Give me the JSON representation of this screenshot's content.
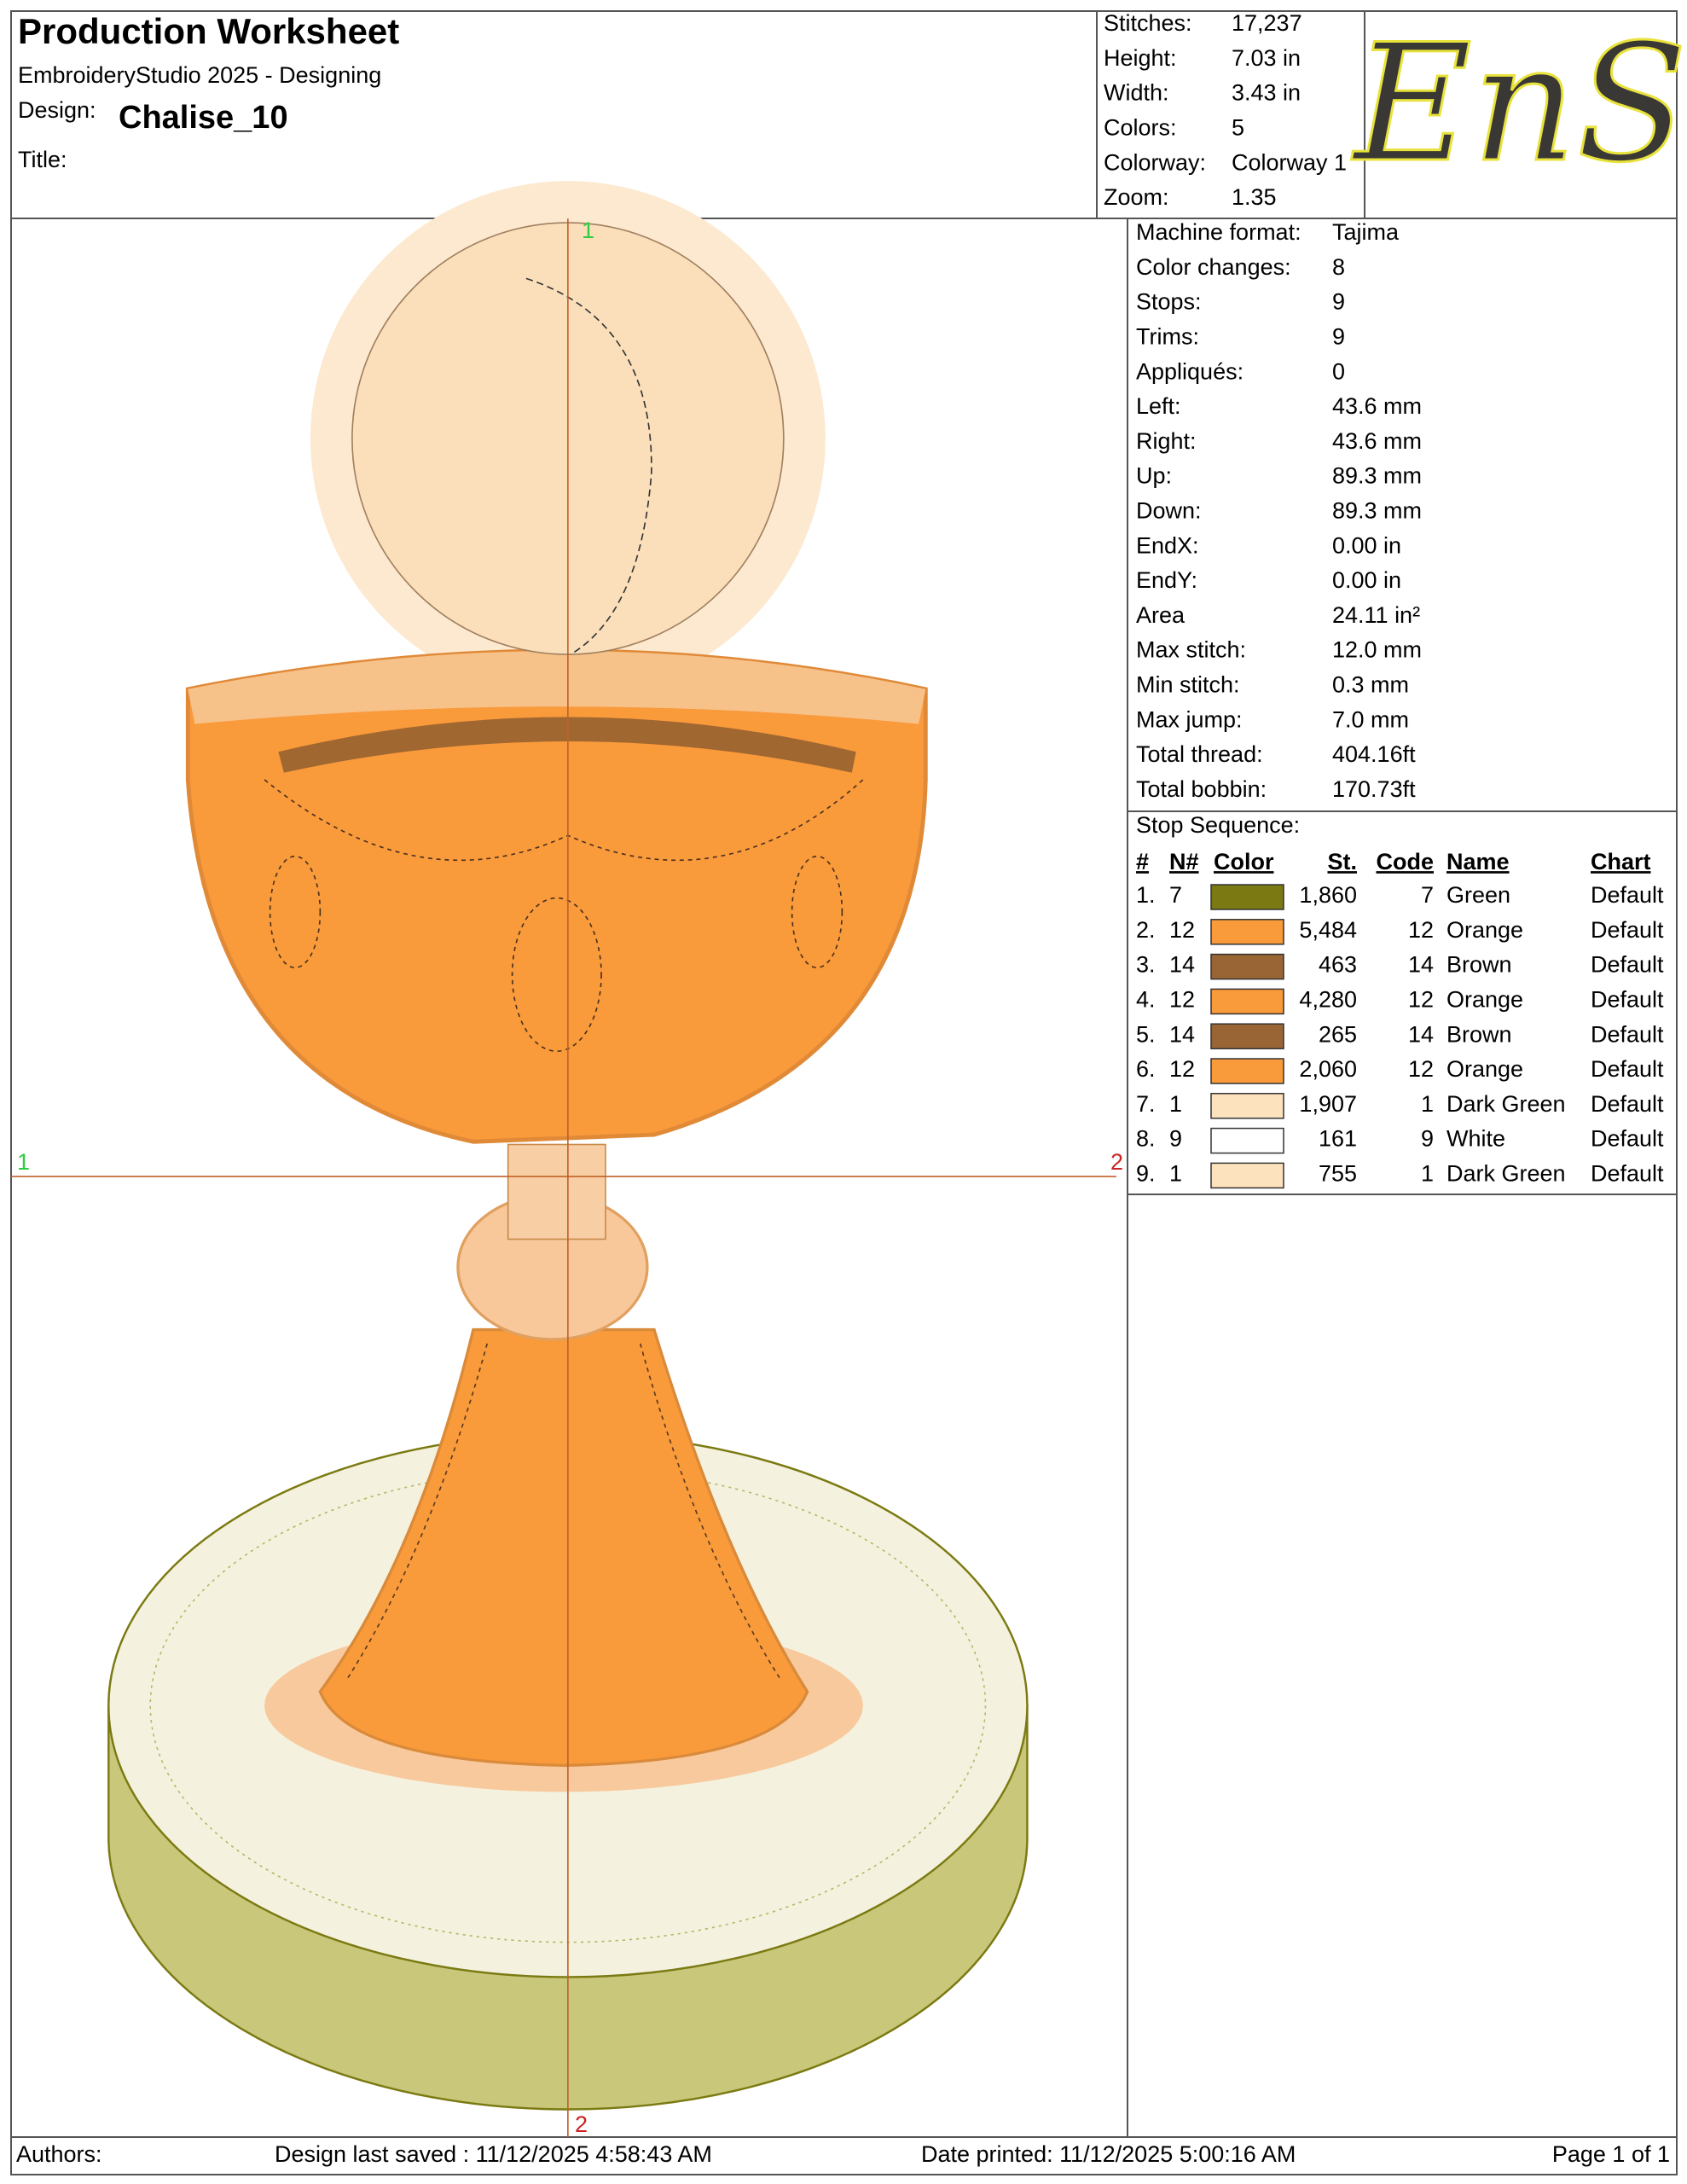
{
  "header": {
    "title": "Production Worksheet",
    "software": "EmbroideryStudio 2025 - Designing",
    "design_label": "Design:",
    "design_name": "Chalise_10",
    "title_label": "Title:"
  },
  "logo": "EnS",
  "summary": [
    {
      "label": "Stitches:",
      "value": "17,237"
    },
    {
      "label": "Height:",
      "value": "7.03 in"
    },
    {
      "label": "Width:",
      "value": "3.43 in"
    },
    {
      "label": "Colors:",
      "value": "5"
    },
    {
      "label": "Colorway:",
      "value": "Colorway 1"
    },
    {
      "label": "Zoom:",
      "value": "1.35"
    }
  ],
  "machine": [
    {
      "label": "Machine format:",
      "value": "Tajima"
    },
    {
      "label": "Color changes:",
      "value": "8"
    },
    {
      "label": "Stops:",
      "value": "9"
    },
    {
      "label": "Trims:",
      "value": "9"
    },
    {
      "label": "Appliqués:",
      "value": "0"
    },
    {
      "label": "Left:",
      "value": "43.6 mm"
    },
    {
      "label": "Right:",
      "value": "43.6 mm"
    },
    {
      "label": "Up:",
      "value": "89.3 mm"
    },
    {
      "label": "Down:",
      "value": "89.3 mm"
    },
    {
      "label": "EndX:",
      "value": "0.00 in"
    },
    {
      "label": "EndY:",
      "value": "0.00 in"
    },
    {
      "label": "Area",
      "value": "24.11 in²"
    },
    {
      "label": "Max stitch:",
      "value": "12.0 mm"
    },
    {
      "label": "Min stitch:",
      "value": "0.3 mm"
    },
    {
      "label": "Max jump:",
      "value": "7.0 mm"
    },
    {
      "label": "Total thread:",
      "value": "404.16ft"
    },
    {
      "label": "Total bobbin:",
      "value": "170.73ft"
    }
  ],
  "stop_sequence": {
    "title": "Stop Sequence:",
    "columns": [
      "#",
      "N#",
      "Color",
      "St.",
      "Code",
      "Name",
      "Chart"
    ],
    "rows": [
      {
        "index": "1.",
        "needle": "7",
        "color": "#7b7a12",
        "stitches": "1,860",
        "code": "7",
        "name": "Green",
        "chart": "Default"
      },
      {
        "index": "2.",
        "needle": "12",
        "color": "#f99a3b",
        "stitches": "5,484",
        "code": "12",
        "name": "Orange",
        "chart": "Default"
      },
      {
        "index": "3.",
        "needle": "14",
        "color": "#9a6535",
        "stitches": "463",
        "code": "14",
        "name": "Brown",
        "chart": "Default"
      },
      {
        "index": "4.",
        "needle": "12",
        "color": "#f99a3b",
        "stitches": "4,280",
        "code": "12",
        "name": "Orange",
        "chart": "Default"
      },
      {
        "index": "5.",
        "needle": "14",
        "color": "#9a6535",
        "stitches": "265",
        "code": "14",
        "name": "Brown",
        "chart": "Default"
      },
      {
        "index": "6.",
        "needle": "12",
        "color": "#f99a3b",
        "stitches": "2,060",
        "code": "12",
        "name": "Orange",
        "chart": "Default"
      },
      {
        "index": "7.",
        "needle": "1",
        "color": "#fde3bd",
        "stitches": "1,907",
        "code": "1",
        "name": "Dark Green",
        "chart": "Default"
      },
      {
        "index": "8.",
        "needle": "9",
        "color": "#ffffff",
        "stitches": "161",
        "code": "9",
        "name": "White",
        "chart": "Default"
      },
      {
        "index": "9.",
        "needle": "1",
        "color": "#fde3bd",
        "stitches": "755",
        "code": "1",
        "name": "Dark Green",
        "chart": "Default"
      }
    ]
  },
  "drawing": {
    "axis_labels": [
      "1",
      "1",
      "2",
      "2"
    ]
  },
  "footer": {
    "authors": "Authors:",
    "saved": "Design last saved : 11/12/2025 4:58:43 AM",
    "printed": "Date printed: 11/12/2025 5:00:16 AM",
    "page": "Page 1 of 1"
  }
}
